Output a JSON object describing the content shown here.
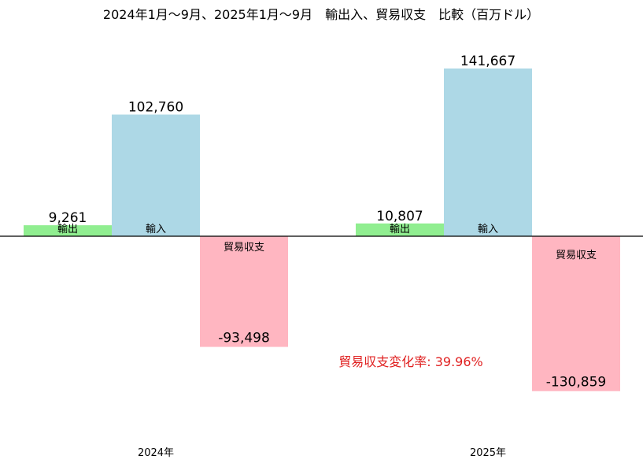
{
  "chart_data": {
    "type": "bar",
    "title": "2024年1月〜9月、2025年1月〜9月　輸出入、貿易収支　比較（百万ドル）",
    "categories": [
      "2024年",
      "2025年"
    ],
    "series": [
      {
        "name": "輸出",
        "values": [
          9261,
          10807
        ],
        "value_labels": [
          "9,261",
          "10,807"
        ],
        "color": "#90ee90"
      },
      {
        "name": "輸入",
        "values": [
          102760,
          141667
        ],
        "value_labels": [
          "102,760",
          "141,667"
        ],
        "color": "#add8e6"
      },
      {
        "name": "貿易収支",
        "values": [
          -93498,
          -130859
        ],
        "value_labels": [
          "-93,498",
          "-130,859"
        ],
        "color": "#ffb6c1"
      }
    ],
    "ylim": [
      -140000,
      165000
    ],
    "grid": false,
    "annotation": {
      "text": "貿易収支変化率: 39.96%",
      "color": "#e02020"
    }
  }
}
